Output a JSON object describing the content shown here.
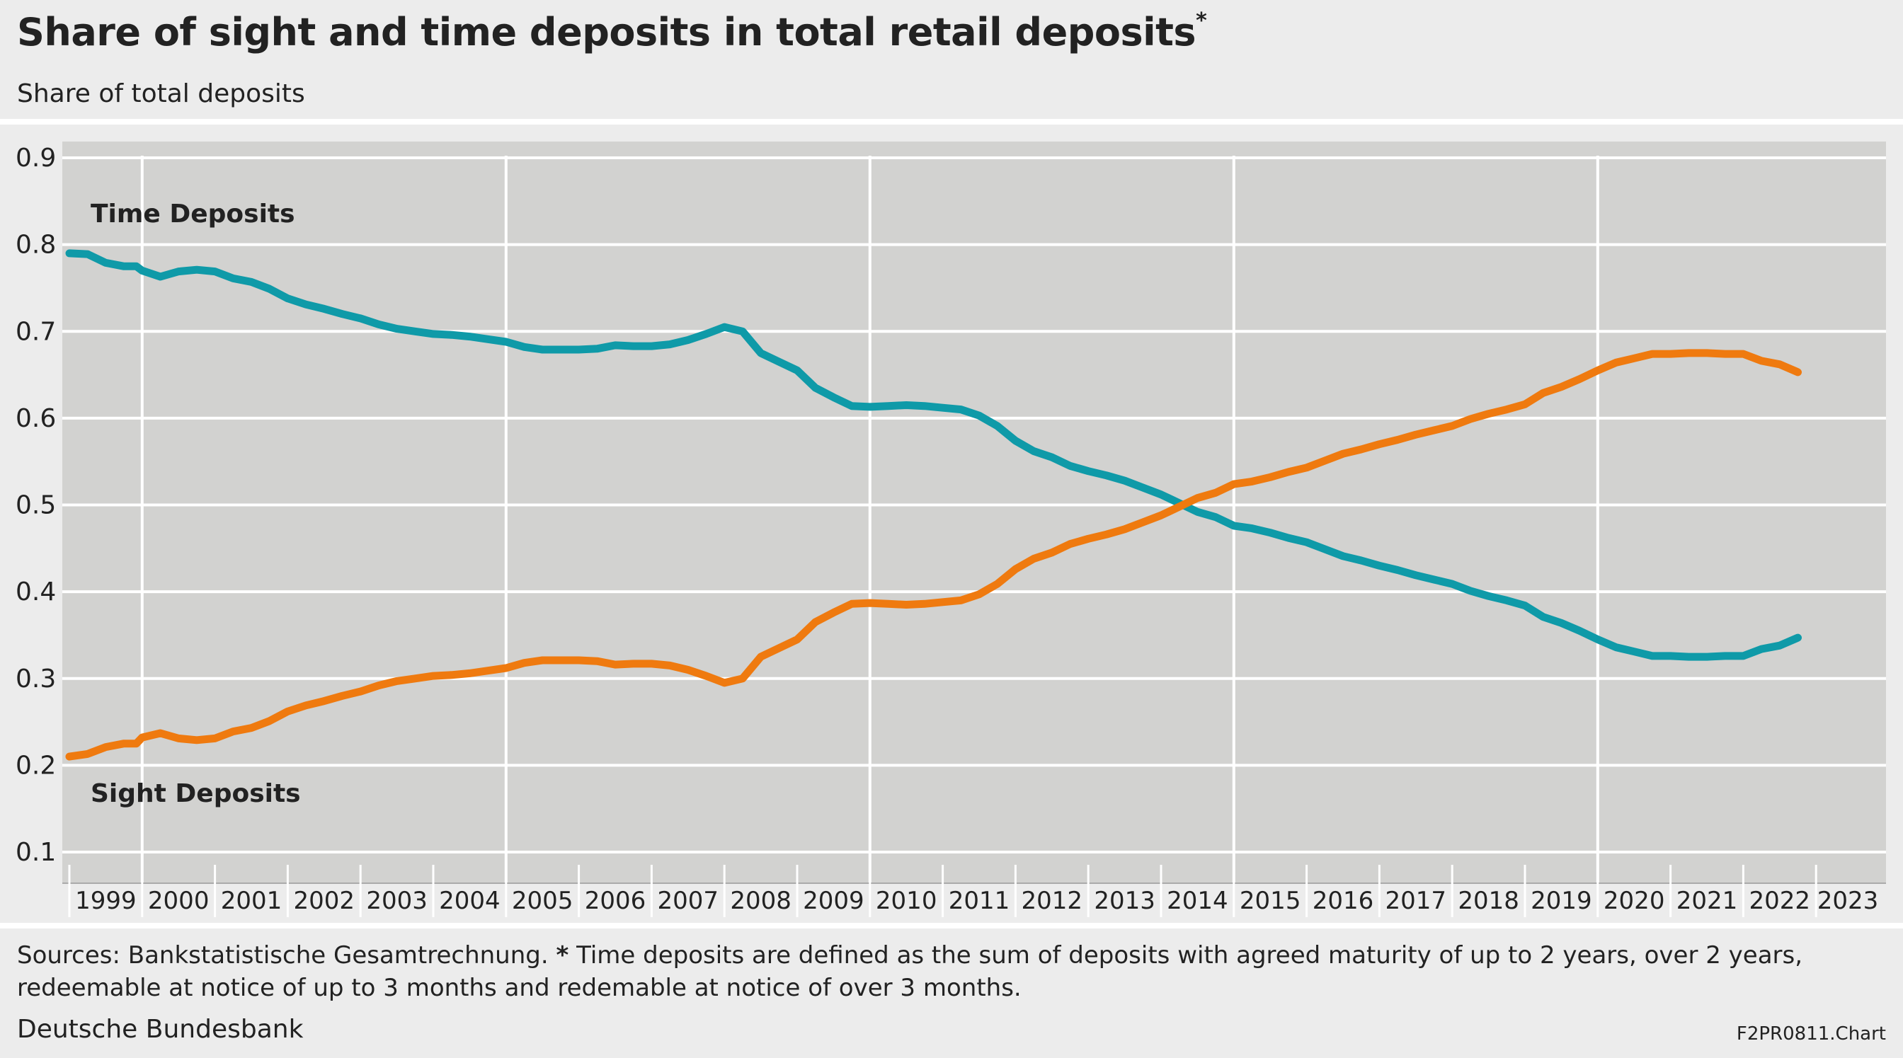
{
  "title": "Share of sight and time deposits in total retail deposits",
  "title_marker": "*",
  "subtitle": "Share of total deposits",
  "footer": {
    "sources_lead": "Sources: Bankstatistische Gesamtrechnung.",
    "footnote_marker": "*",
    "footnote": "Time deposits are defined as the sum of deposits with agreed maturity of up to 2 years, over 2 years, redeemable at notice of up to 3 months and redemable at notice of over 3 months.",
    "publisher": "Deutsche Bundesbank",
    "chart_code": "F2PR0811.Chart"
  },
  "colors": {
    "time_deposits": "#0f9aa8",
    "sight_deposits": "#ef7a0f",
    "plot_background": "#d2d2d0",
    "gridline": "#ffffff"
  },
  "chart_data": {
    "type": "line",
    "title": "Share of sight and time deposits in total retail deposits",
    "ylabel": "Share of total deposits",
    "ylim": [
      0.1,
      0.9
    ],
    "xlim": [
      1999.0,
      2023.0
    ],
    "yticks": [
      "0.1",
      "0.2",
      "0.3",
      "0.4",
      "0.5",
      "0.6",
      "0.7",
      "0.8",
      "0.9"
    ],
    "xticks": [
      "1999",
      "2000",
      "2001",
      "2002",
      "2003",
      "2004",
      "2005",
      "2006",
      "2007",
      "2008",
      "2009",
      "2010",
      "2011",
      "2012",
      "2013",
      "2014",
      "2015",
      "2016",
      "2017",
      "2018",
      "2019",
      "2020",
      "2021",
      "2022",
      "2023"
    ],
    "grid": true,
    "legend": "inline labels",
    "series": [
      {
        "name": "Time Deposits",
        "x": [
          1999.0,
          1999.25,
          1999.5,
          1999.75,
          1999.92,
          2000.0,
          2000.25,
          2000.5,
          2000.75,
          2001.0,
          2001.25,
          2001.5,
          2001.75,
          2002.0,
          2002.25,
          2002.5,
          2002.75,
          2003.0,
          2003.25,
          2003.5,
          2003.75,
          2004.0,
          2004.25,
          2004.5,
          2004.75,
          2005.0,
          2005.25,
          2005.5,
          2005.75,
          2006.0,
          2006.25,
          2006.5,
          2006.75,
          2007.0,
          2007.25,
          2007.5,
          2007.75,
          2008.0,
          2008.25,
          2008.5,
          2008.75,
          2009.0,
          2009.25,
          2009.5,
          2009.75,
          2010.0,
          2010.25,
          2010.5,
          2010.75,
          2011.0,
          2011.25,
          2011.5,
          2011.75,
          2012.0,
          2012.25,
          2012.5,
          2012.75,
          2013.0,
          2013.25,
          2013.5,
          2013.75,
          2014.0,
          2014.25,
          2014.5,
          2014.75,
          2015.0,
          2015.25,
          2015.5,
          2015.75,
          2016.0,
          2016.25,
          2016.5,
          2016.75,
          2017.0,
          2017.25,
          2017.5,
          2017.75,
          2018.0,
          2018.25,
          2018.5,
          2018.75,
          2019.0,
          2019.25,
          2019.5,
          2019.75,
          2020.0,
          2020.25,
          2020.5,
          2020.75,
          2021.0,
          2021.25,
          2021.5,
          2021.75,
          2022.0,
          2022.25,
          2022.5,
          2022.75
        ],
        "y": [
          0.79,
          0.789,
          0.779,
          0.775,
          0.775,
          0.77,
          0.763,
          0.769,
          0.771,
          0.769,
          0.761,
          0.757,
          0.749,
          0.738,
          0.731,
          0.726,
          0.72,
          0.715,
          0.708,
          0.703,
          0.7,
          0.697,
          0.696,
          0.694,
          0.691,
          0.688,
          0.682,
          0.679,
          0.679,
          0.679,
          0.68,
          0.684,
          0.683,
          0.683,
          0.685,
          0.69,
          0.697,
          0.705,
          0.7,
          0.675,
          0.665,
          0.655,
          0.635,
          0.624,
          0.614,
          0.613,
          0.614,
          0.615,
          0.614,
          0.612,
          0.61,
          0.603,
          0.591,
          0.574,
          0.562,
          0.555,
          0.545,
          0.539,
          0.534,
          0.528,
          0.52,
          0.512,
          0.502,
          0.492,
          0.486,
          0.476,
          0.473,
          0.468,
          0.462,
          0.457,
          0.449,
          0.441,
          0.436,
          0.43,
          0.425,
          0.419,
          0.414,
          0.409,
          0.401,
          0.395,
          0.39,
          0.384,
          0.371,
          0.364,
          0.355,
          0.345,
          0.336,
          0.331,
          0.326,
          0.326,
          0.325,
          0.325,
          0.326,
          0.326,
          0.334,
          0.338,
          0.347
        ]
      },
      {
        "name": "Sight Deposits",
        "x": [
          1999.0,
          1999.25,
          1999.5,
          1999.75,
          1999.92,
          2000.0,
          2000.25,
          2000.5,
          2000.75,
          2001.0,
          2001.25,
          2001.5,
          2001.75,
          2002.0,
          2002.25,
          2002.5,
          2002.75,
          2003.0,
          2003.25,
          2003.5,
          2003.75,
          2004.0,
          2004.25,
          2004.5,
          2004.75,
          2005.0,
          2005.25,
          2005.5,
          2005.75,
          2006.0,
          2006.25,
          2006.5,
          2006.75,
          2007.0,
          2007.25,
          2007.5,
          2007.75,
          2008.0,
          2008.25,
          2008.5,
          2008.75,
          2009.0,
          2009.25,
          2009.5,
          2009.75,
          2010.0,
          2010.25,
          2010.5,
          2010.75,
          2011.0,
          2011.25,
          2011.5,
          2011.75,
          2012.0,
          2012.25,
          2012.5,
          2012.75,
          2013.0,
          2013.25,
          2013.5,
          2013.75,
          2014.0,
          2014.25,
          2014.5,
          2014.75,
          2015.0,
          2015.25,
          2015.5,
          2015.75,
          2016.0,
          2016.25,
          2016.5,
          2016.75,
          2017.0,
          2017.25,
          2017.5,
          2017.75,
          2018.0,
          2018.25,
          2018.5,
          2018.75,
          2019.0,
          2019.25,
          2019.5,
          2019.75,
          2020.0,
          2020.25,
          2020.5,
          2020.75,
          2021.0,
          2021.25,
          2021.5,
          2021.75,
          2022.0,
          2022.25,
          2022.5,
          2022.75
        ],
        "y": [
          0.21,
          0.213,
          0.221,
          0.225,
          0.225,
          0.232,
          0.237,
          0.231,
          0.229,
          0.231,
          0.239,
          0.243,
          0.251,
          0.262,
          0.269,
          0.274,
          0.28,
          0.285,
          0.292,
          0.297,
          0.3,
          0.303,
          0.304,
          0.306,
          0.309,
          0.312,
          0.318,
          0.321,
          0.321,
          0.321,
          0.32,
          0.316,
          0.317,
          0.317,
          0.315,
          0.31,
          0.303,
          0.295,
          0.3,
          0.325,
          0.335,
          0.345,
          0.365,
          0.376,
          0.386,
          0.387,
          0.386,
          0.385,
          0.386,
          0.388,
          0.39,
          0.397,
          0.409,
          0.426,
          0.438,
          0.445,
          0.455,
          0.461,
          0.466,
          0.472,
          0.48,
          0.488,
          0.498,
          0.508,
          0.514,
          0.524,
          0.527,
          0.532,
          0.538,
          0.543,
          0.551,
          0.559,
          0.564,
          0.57,
          0.575,
          0.581,
          0.586,
          0.591,
          0.599,
          0.605,
          0.61,
          0.616,
          0.629,
          0.636,
          0.645,
          0.655,
          0.664,
          0.669,
          0.674,
          0.674,
          0.675,
          0.675,
          0.674,
          0.674,
          0.666,
          0.662,
          0.653
        ]
      }
    ]
  }
}
